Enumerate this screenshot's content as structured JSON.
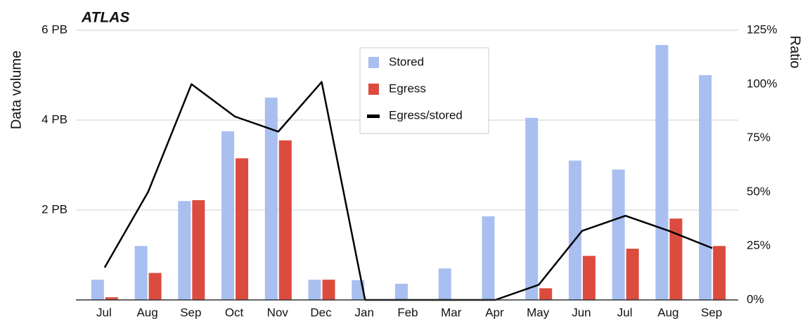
{
  "chart_data": {
    "type": "bar",
    "title": "ATLAS",
    "y_label": "Data volume",
    "y2_label": "Ratio",
    "categories": [
      "Jul",
      "Aug",
      "Sep",
      "Oct",
      "Nov",
      "Dec",
      "Jan",
      "Feb",
      "Mar",
      "Apr",
      "May",
      "Jun",
      "Jul",
      "Aug",
      "Sep"
    ],
    "series": [
      {
        "name": "Stored",
        "color": "#a8bff0",
        "type": "bar",
        "values": [
          0.45,
          1.2,
          2.2,
          3.75,
          4.5,
          0.45,
          0.44,
          0.36,
          0.7,
          1.86,
          4.05,
          3.1,
          2.9,
          5.67,
          5.0
        ]
      },
      {
        "name": "Egress",
        "color": "#db4c3f",
        "type": "bar",
        "values": [
          0.06,
          0.6,
          2.22,
          3.15,
          3.55,
          0.45,
          0,
          0,
          0,
          0,
          0.26,
          0.98,
          1.14,
          1.81,
          1.2
        ]
      },
      {
        "name": "Egress/stored",
        "color": "#000000",
        "type": "line",
        "axis": "y2",
        "values": [
          15,
          50,
          100,
          85,
          78,
          101,
          0,
          0,
          0,
          0,
          7,
          32,
          39,
          32,
          24
        ]
      }
    ],
    "ylim": [
      0,
      6
    ],
    "yticks": [
      {
        "value": 2,
        "label": "2 PB"
      },
      {
        "value": 4,
        "label": "4 PB"
      },
      {
        "value": 6,
        "label": "6 PB"
      }
    ],
    "y2lim": [
      0,
      125
    ],
    "y2ticks": [
      {
        "value": 0,
        "label": "0%"
      },
      {
        "value": 25,
        "label": "25%"
      },
      {
        "value": 50,
        "label": "50%"
      },
      {
        "value": 75,
        "label": "75%"
      },
      {
        "value": 100,
        "label": "100%"
      },
      {
        "value": 125,
        "label": "125%"
      }
    ],
    "grid": true,
    "legend": "top"
  }
}
